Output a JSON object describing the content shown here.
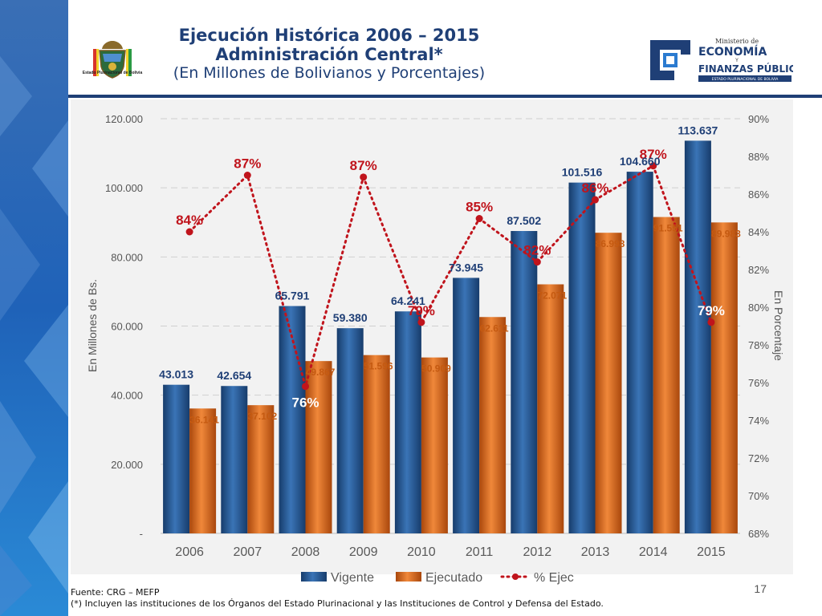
{
  "header": {
    "title_line1": "Ejecución Histórica 2006 – 2015",
    "title_line2": "Administración Central*",
    "title_line3": "(En Millones de Bolivianos y Porcentajes)",
    "emblem_caption": "Estado Plurinacional de Bolivia",
    "ministry_small": "Ministerio de",
    "ministry_big1": "ECONOMÍA",
    "ministry_y": "Y",
    "ministry_big2": "FINANZAS PÚBLICAS",
    "ministry_strip": "ESTADO PLURINACIONAL DE BOLIVIA"
  },
  "colors": {
    "brand_navy": "#1f3f76",
    "vigente": "#2a5d96",
    "ejecutado": "#e2711d",
    "pct": "#c0141c",
    "pct_text": "#c0141c",
    "vigente_label": "#1f3f76",
    "ejecutado_label": "#c55a11"
  },
  "chart_data": {
    "type": "bar",
    "categories": [
      "2006",
      "2007",
      "2008",
      "2009",
      "2010",
      "2011",
      "2012",
      "2013",
      "2014",
      "2015"
    ],
    "series": [
      {
        "name": "Vigente",
        "axis": "left",
        "values": [
          43013,
          42654,
          65791,
          59380,
          64241,
          73945,
          87502,
          101516,
          104660,
          113637
        ],
        "labels": [
          "43.013",
          "42.654",
          "65.791",
          "59.380",
          "64.241",
          "73.945",
          "87.502",
          "101.516",
          "104.660",
          "113.637"
        ]
      },
      {
        "name": "Ejecutado",
        "axis": "left",
        "values": [
          36141,
          37102,
          49867,
          51596,
          50909,
          62611,
          72071,
          86998,
          91551,
          89983
        ],
        "labels": [
          "36.141",
          "37.102",
          "49.867",
          "51.596",
          "50.909",
          "62.611",
          "72.071",
          "86.998",
          "91.551",
          "89.983"
        ]
      },
      {
        "name": "% Ejec",
        "type": "line",
        "style": "dotted",
        "axis": "right",
        "values": [
          84.0,
          87.0,
          75.8,
          86.9,
          79.2,
          84.7,
          82.4,
          85.7,
          87.5,
          79.2
        ],
        "labels": [
          "84%",
          "87%",
          "76%",
          "87%",
          "79%",
          "85%",
          "82%",
          "86%",
          "87%",
          "79%"
        ]
      }
    ],
    "y_left": {
      "label": "En Millones de Bs.",
      "min": 0,
      "max": 120000,
      "ticks": [
        0,
        20000,
        40000,
        60000,
        80000,
        100000,
        120000
      ],
      "tick_labels": [
        "-",
        "20.000",
        "40.000",
        "60.000",
        "80.000",
        "100.000",
        "120.000"
      ]
    },
    "y_right": {
      "label": "En Porcentaje",
      "min": 68,
      "max": 90,
      "ticks": [
        68,
        70,
        72,
        74,
        76,
        78,
        80,
        82,
        84,
        86,
        88,
        90
      ],
      "tick_labels": [
        "68%",
        "70%",
        "72%",
        "74%",
        "76%",
        "78%",
        "80%",
        "82%",
        "84%",
        "86%",
        "88%",
        "90%"
      ]
    },
    "grid": true,
    "legend": "bottom"
  },
  "footer": {
    "source": "Fuente: CRG – MEFP",
    "note": "(*) Incluyen las instituciones de los Órganos del Estado Plurinacional y las Instituciones de Control y Defensa del Estado."
  },
  "page_number": "17"
}
